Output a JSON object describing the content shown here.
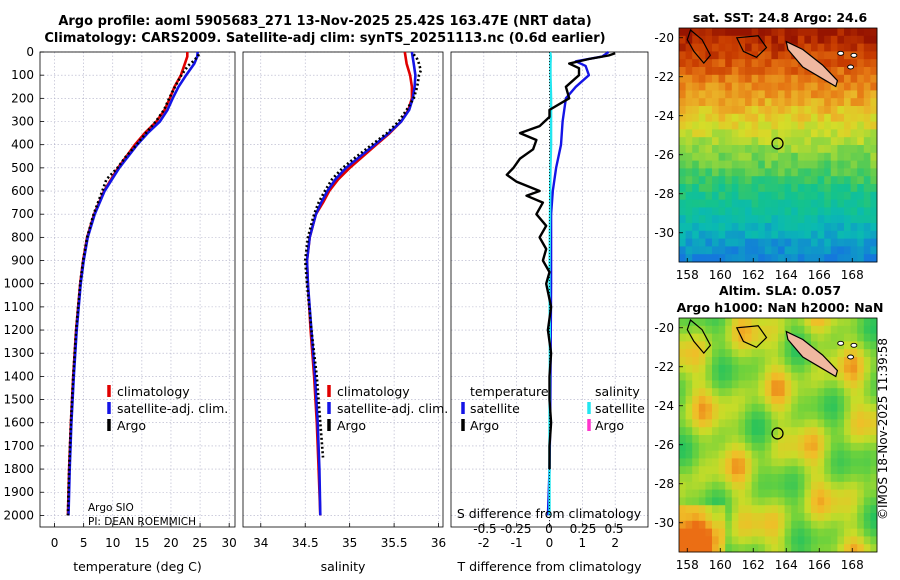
{
  "header": {
    "title_line1": "Argo profile: aoml 5905683_271 13-Nov-2025 25.42S 163.47E (NRT data)",
    "title_line2": "Climatology: CARS2009. Satellite-adj clim: synTS_20251113.nc (0.6d earlier)"
  },
  "colors": {
    "climatology": "#e00000",
    "satellite_adj": "#1414e6",
    "argo": "#000000",
    "satellite_salinity": "#22e6f0",
    "argo_salinity_diff": "#ff33cc",
    "grid": "#b0b0c8"
  },
  "chart_data": [
    {
      "type": "line",
      "id": "temperature",
      "xlabel": "temperature (deg C)",
      "ylabel": "",
      "xlim": [
        -2.5,
        31
      ],
      "ylim": [
        2050,
        0
      ],
      "xticks": [
        0,
        5,
        10,
        15,
        20,
        25,
        30
      ],
      "yticks": [
        0,
        100,
        200,
        300,
        400,
        500,
        600,
        700,
        800,
        900,
        1000,
        1100,
        1200,
        1300,
        1400,
        1500,
        1600,
        1700,
        1800,
        1900,
        2000
      ],
      "legend": [
        "climatology",
        "satellite-adj. clim.",
        "Argo"
      ],
      "annotation": [
        "Argo SIO",
        "PI: DEAN ROEMMICH"
      ],
      "series": [
        {
          "name": "climatology",
          "style": "solid",
          "color": "#e00000",
          "depth": [
            0,
            20,
            50,
            100,
            150,
            200,
            250,
            300,
            350,
            400,
            500,
            600,
            700,
            800,
            900,
            1000,
            1200,
            1400,
            1600,
            1800,
            2000
          ],
          "values": [
            22.8,
            22.8,
            22.4,
            21.7,
            20.6,
            19.8,
            18.9,
            17.5,
            15.5,
            13.8,
            10.9,
            8.5,
            6.8,
            5.6,
            4.9,
            4.4,
            3.7,
            3.2,
            2.8,
            2.5,
            2.3
          ]
        },
        {
          "name": "satellite-adj. clim.",
          "style": "solid",
          "color": "#1414e6",
          "depth": [
            0,
            20,
            50,
            100,
            150,
            200,
            250,
            300,
            350,
            400,
            500,
            600,
            700,
            800,
            900,
            1000,
            1200,
            1400,
            1600,
            1800,
            2000
          ],
          "values": [
            24.6,
            24.5,
            24.0,
            22.6,
            21.3,
            20.3,
            19.4,
            18.1,
            16.0,
            14.2,
            11.1,
            8.6,
            6.9,
            5.7,
            5.0,
            4.5,
            3.8,
            3.3,
            2.9,
            2.6,
            2.4
          ]
        },
        {
          "name": "Argo",
          "style": "dotted",
          "color": "#000000",
          "depth": [
            10,
            20,
            40,
            60,
            100,
            150,
            200,
            250,
            300,
            350,
            400,
            450,
            500,
            550,
            600,
            700,
            800,
            900,
            1000,
            1200,
            1400,
            1600,
            1800,
            2000
          ],
          "values": [
            24.8,
            24.6,
            23.8,
            22.9,
            21.8,
            20.7,
            19.7,
            18.8,
            17.4,
            15.7,
            14.1,
            12.3,
            10.8,
            8.9,
            8.2,
            6.7,
            5.6,
            4.9,
            4.4,
            3.7,
            3.2,
            2.8,
            2.5,
            2.3
          ]
        }
      ]
    },
    {
      "type": "line",
      "id": "salinity",
      "xlabel": "salinity",
      "xlim": [
        33.8,
        36.05
      ],
      "ylim": [
        2050,
        0
      ],
      "xticks": [
        34,
        34.5,
        35,
        35.5,
        36
      ],
      "legend": [
        "climatology",
        "satellite-adj. clim.",
        "Argo"
      ],
      "series": [
        {
          "name": "climatology",
          "style": "solid",
          "color": "#e00000",
          "depth": [
            0,
            50,
            100,
            150,
            200,
            250,
            300,
            350,
            400,
            450,
            500,
            550,
            600,
            650,
            700,
            800,
            900,
            1000,
            1200,
            1400,
            1600,
            1800,
            2000
          ],
          "values": [
            35.62,
            35.64,
            35.68,
            35.7,
            35.7,
            35.66,
            35.58,
            35.45,
            35.3,
            35.15,
            35.0,
            34.87,
            34.77,
            34.7,
            34.62,
            34.55,
            34.52,
            34.53,
            34.56,
            34.6,
            34.63,
            34.65,
            34.67
          ]
        },
        {
          "name": "satellite-adj. clim.",
          "style": "solid",
          "color": "#1414e6",
          "depth": [
            0,
            50,
            100,
            150,
            200,
            250,
            300,
            350,
            400,
            450,
            500,
            550,
            600,
            650,
            700,
            800,
            900,
            1000,
            1200,
            1400,
            1600,
            1800,
            2000
          ],
          "values": [
            35.7,
            35.72,
            35.74,
            35.73,
            35.71,
            35.67,
            35.58,
            35.44,
            35.28,
            35.12,
            34.96,
            34.84,
            34.75,
            34.68,
            34.62,
            34.55,
            34.52,
            34.53,
            34.57,
            34.61,
            34.64,
            34.66,
            34.67
          ]
        },
        {
          "name": "Argo",
          "style": "dotted",
          "color": "#000000",
          "depth": [
            10,
            30,
            50,
            80,
            100,
            150,
            200,
            250,
            300,
            350,
            400,
            450,
            500,
            550,
            600,
            650,
            700,
            800,
            900,
            1000,
            1200,
            1400,
            1600,
            1750
          ],
          "values": [
            35.72,
            35.76,
            35.78,
            35.8,
            35.78,
            35.76,
            35.72,
            35.64,
            35.55,
            35.42,
            35.25,
            35.08,
            34.92,
            34.8,
            34.72,
            34.65,
            34.6,
            34.53,
            34.5,
            34.52,
            34.57,
            34.63,
            34.67,
            34.7
          ]
        }
      ]
    },
    {
      "type": "line",
      "id": "difference",
      "xlabel": "T difference from climatology",
      "top_label": "S difference from climatology",
      "xlim": [
        -3,
        3
      ],
      "ylim": [
        2050,
        0
      ],
      "xticks_T": [
        -2,
        -1,
        0,
        1,
        2
      ],
      "xticks_S": [
        "-0.5",
        "-0.25",
        "0",
        "0.25",
        "0.5"
      ],
      "legend_headers": [
        "temperature",
        "salinity"
      ],
      "legend_left": [
        "satellite",
        "Argo"
      ],
      "legend_right": [
        "satellite",
        "Argo"
      ],
      "series": [
        {
          "name": "temperature satellite",
          "style": "solid",
          "color": "#1414e6",
          "depth": [
            0,
            10,
            20,
            40,
            60,
            100,
            150,
            200,
            300,
            400,
            500,
            600,
            700,
            800,
            1000,
            1200,
            1400,
            1600,
            1800,
            2000
          ],
          "values": [
            1.8,
            1.7,
            1.6,
            0.8,
            1.1,
            1.2,
            0.8,
            0.5,
            0.4,
            0.35,
            0.2,
            0.1,
            0.05,
            0.05,
            0.05,
            0.04,
            0.03,
            0.02,
            0.0,
            -0.05
          ]
        },
        {
          "name": "salinity satellite",
          "style": "solid",
          "color": "#22e6f0",
          "depth": [
            0,
            20,
            50,
            100,
            200,
            300,
            400,
            500,
            600,
            800,
            1000,
            1200,
            1400,
            1600,
            1800,
            2000
          ],
          "values": [
            0.02,
            0.04,
            0.03,
            0.03,
            0.05,
            0.05,
            0.05,
            0.03,
            0.02,
            0.01,
            0.0,
            0.01,
            0.01,
            0.0,
            0.0,
            0.0
          ]
        },
        {
          "name": "temperature Argo",
          "style": "solid",
          "color": "#000000",
          "depth": [
            5,
            15,
            30,
            50,
            70,
            100,
            150,
            200,
            250,
            280,
            320,
            350,
            380,
            420,
            460,
            500,
            530,
            560,
            600,
            620,
            650,
            700,
            750,
            800,
            850,
            900,
            950,
            1000,
            1100,
            1200,
            1300,
            1400,
            1500,
            1600,
            1700,
            1800
          ],
          "values": [
            2.0,
            1.8,
            1.2,
            0.6,
            0.9,
            0.9,
            0.5,
            0.6,
            0.0,
            0.0,
            -0.3,
            -0.9,
            -0.4,
            -0.5,
            -0.9,
            -1.1,
            -1.3,
            -1.0,
            -0.3,
            -0.7,
            -0.2,
            -0.4,
            -0.1,
            -0.3,
            -0.1,
            -0.2,
            0.0,
            -0.1,
            0.05,
            -0.05,
            0.05,
            0.0,
            0.0,
            0.05,
            0.0,
            0.0
          ]
        }
      ]
    },
    {
      "type": "heatmap",
      "id": "sst_map",
      "title": "sat. SST: 24.8 Argo: 24.6",
      "xlim": [
        157.5,
        169.5
      ],
      "ylim": [
        -31.5,
        -19.5
      ],
      "xticks": [
        158,
        160,
        162,
        164,
        166,
        168
      ],
      "yticks": [
        -20,
        -22,
        -24,
        -26,
        -28,
        -30
      ],
      "marker": {
        "lon": 163.47,
        "lat": -25.42
      }
    },
    {
      "type": "heatmap",
      "id": "sla_map",
      "title_line1": "Altim. SLA: 0.057",
      "title_line2": "Argo h1000: NaN h2000: NaN",
      "xlim": [
        157.5,
        169.5
      ],
      "ylim": [
        -31.5,
        -19.5
      ],
      "xticks": [
        158,
        160,
        162,
        164,
        166,
        168
      ],
      "yticks": [
        -20,
        -22,
        -24,
        -26,
        -28,
        -30
      ],
      "marker": {
        "lon": 163.47,
        "lat": -25.42
      }
    }
  ],
  "footer": {
    "credit": "©IMOS 18-Nov-2025 11:39:58"
  }
}
